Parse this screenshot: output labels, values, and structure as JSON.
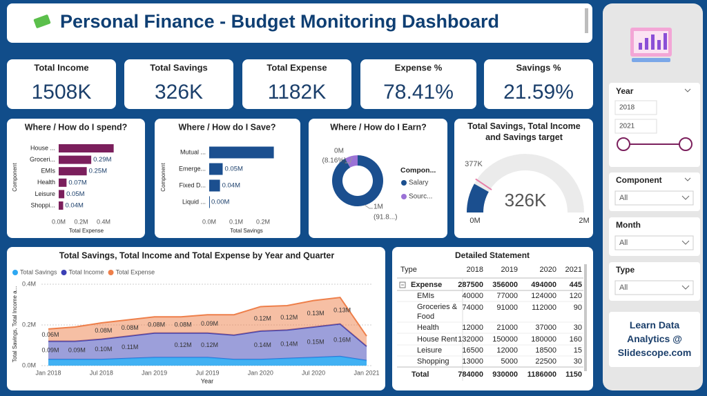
{
  "header": {
    "title": "Personal Finance - Budget Monitoring Dashboard"
  },
  "kpis": [
    {
      "label": "Total Income",
      "value": "1508K"
    },
    {
      "label": "Total Savings",
      "value": "326K"
    },
    {
      "label": "Total Expense",
      "value": "1182K"
    },
    {
      "label": "Expense %",
      "value": "78.41%"
    },
    {
      "label": "Savings %",
      "value": "21.59%"
    }
  ],
  "spend": {
    "type": "bar",
    "orientation": "horizontal",
    "title": "Where / How do I spend?",
    "x_label": "Total Expense",
    "y_label": "Component",
    "categories": [
      "House ...",
      "Groceri...",
      "EMIs",
      "Health",
      "Leisure",
      "Shoppi..."
    ],
    "values": [
      0.49,
      0.29,
      0.25,
      0.07,
      0.05,
      0.04
    ],
    "value_labels": [
      null,
      "0.29M",
      "0.25M",
      "0.07M",
      "0.05M",
      "0.04M"
    ],
    "color": "#7b1f5c",
    "xlim": [
      0,
      0.55
    ],
    "xticks": [
      {
        "value": 0,
        "label": "0.0M"
      },
      {
        "value": 0.2,
        "label": "0.2M"
      },
      {
        "value": 0.4,
        "label": "0.4M"
      }
    ]
  },
  "save": {
    "type": "bar",
    "orientation": "horizontal",
    "title": "Where / How do I Save?",
    "x_label": "Total Savings",
    "y_label": "Component",
    "categories": [
      "Mutual ...",
      "Emerge...",
      "Fixed D...",
      "Liquid ..."
    ],
    "values": [
      0.24,
      0.05,
      0.04,
      0.0
    ],
    "value_labels": [
      null,
      "0.05M",
      "0.04M",
      "0.00M"
    ],
    "color": "#1b4f8f",
    "xlim": [
      0,
      0.25
    ],
    "xticks": [
      {
        "value": 0,
        "label": "0.0M"
      },
      {
        "value": 0.1,
        "label": "0.1M"
      },
      {
        "value": 0.2,
        "label": "0.2M"
      }
    ]
  },
  "earn": {
    "type": "pie",
    "donut": true,
    "title": "Where / How do I Earn?",
    "legend_title": "Compon...",
    "categories": [
      "Salary",
      "Sourc..."
    ],
    "values": [
      91.84,
      8.16
    ],
    "value_labels": [
      "(91.8...)",
      "(8.16%)"
    ],
    "amount_labels": [
      "1M",
      "0M"
    ],
    "colors": [
      "#1b4f8f",
      "#9b72d6"
    ]
  },
  "gauge": {
    "type": "gauge",
    "title": "Total Savings, Total Income and Savings target",
    "value": 326,
    "value_label": "326K",
    "target": 377,
    "target_label": "377K",
    "min": {
      "value": 0,
      "label": "0M"
    },
    "max": {
      "value": 2000,
      "label": "2M"
    },
    "color": "#1b4f8f",
    "target_color": "#e67fa8"
  },
  "trend": {
    "type": "area",
    "stacked": true,
    "title": "Total Savings, Total Income and Total Expense by Year and Quarter",
    "x_label": "Year",
    "y_label": "Total Savings, Total Income a...",
    "categories": [
      "Jan 2018",
      null,
      "Jul 2018",
      null,
      "Jan 2019",
      null,
      "Jul 2019",
      null,
      "Jan 2020",
      null,
      "Jul 2020",
      null,
      "Jan 2021"
    ],
    "series": [
      {
        "name": "Total Savings",
        "color": "#2ea8f2",
        "values": [
          0.03,
          0.03,
          0.03,
          0.035,
          0.04,
          0.04,
          0.04,
          0.03,
          0.03,
          0.035,
          0.04,
          0.045,
          0.025
        ]
      },
      {
        "name": "Total Income",
        "color": "#3a3fb5",
        "values": [
          0.09,
          0.09,
          0.1,
          0.11,
          0.12,
          0.12,
          0.12,
          0.12,
          0.14,
          0.14,
          0.15,
          0.16,
          0.07
        ],
        "value_labels": [
          "0.09M",
          "0.09M",
          "0.10M",
          "0.11M",
          null,
          "0.12M",
          "0.12M",
          null,
          "0.14M",
          "0.14M",
          "0.15M",
          "0.16M",
          null
        ]
      },
      {
        "name": "Total Expense",
        "color": "#ee7f4a",
        "values": [
          0.06,
          0.07,
          0.08,
          0.08,
          0.08,
          0.08,
          0.09,
          0.1,
          0.12,
          0.12,
          0.13,
          0.13,
          0.05
        ],
        "value_labels": [
          "0.06M",
          null,
          "0.08M",
          "0.08M",
          "0.08M",
          "0.08M",
          "0.09M",
          null,
          "0.12M",
          "0.12M",
          "0.13M",
          "0.13M",
          null
        ]
      }
    ],
    "ylim": [
      0,
      0.4
    ],
    "yticks": [
      {
        "value": 0,
        "label": "0.0M"
      },
      {
        "value": 0.2,
        "label": "0.2M"
      },
      {
        "value": 0.4,
        "label": "0.4M"
      }
    ],
    "grid": true
  },
  "table": {
    "title": "Detailed Statement",
    "columns": [
      "Type",
      "2018",
      "2019",
      "2020",
      "2021"
    ],
    "rows": [
      [
        "Expense",
        "287500",
        "356000",
        "494000",
        "445"
      ],
      [
        "EMIs",
        "40000",
        "77000",
        "124000",
        "120"
      ],
      [
        "Groceries & Food",
        "74000",
        "91000",
        "112000",
        "90"
      ],
      [
        "Health",
        "12000",
        "21000",
        "37000",
        "30"
      ],
      [
        "House Rent",
        "132000",
        "150000",
        "180000",
        "160"
      ],
      [
        "Leisure",
        "16500",
        "12000",
        "18500",
        "15"
      ],
      [
        "Shopping",
        "13000",
        "5000",
        "22500",
        "30"
      ],
      [
        "Total",
        "784000",
        "930000",
        "1186000",
        "1150"
      ]
    ]
  },
  "slicers": {
    "year": {
      "label": "Year",
      "from": "2018",
      "to": "2021"
    },
    "items": [
      {
        "label": "Component",
        "value": "All"
      },
      {
        "label": "Month",
        "value": "All"
      },
      {
        "label": "Type",
        "value": "All"
      }
    ]
  },
  "promo": "Learn Data Analytics @ Slidescope.com"
}
